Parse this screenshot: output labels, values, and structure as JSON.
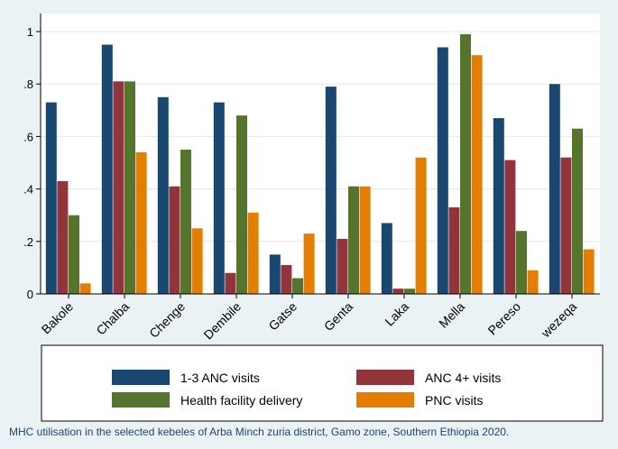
{
  "chart_data": {
    "type": "bar",
    "title": "",
    "xlabel": "",
    "ylabel": "",
    "ylim": [
      0,
      1
    ],
    "yticks": [
      0,
      0.2,
      0.4,
      0.6,
      0.8,
      1
    ],
    "ytick_labels": [
      "0",
      ".2",
      ".4",
      ".6",
      ".8",
      "1"
    ],
    "categories": [
      "Bakole",
      "Chalba",
      "Chenge",
      "Dembile",
      "Gatse",
      "Genta",
      "Laka",
      "Mella",
      "Pereso",
      "wezeqa"
    ],
    "series": [
      {
        "name": "1-3 ANC visits",
        "color": "#1a476f",
        "values": [
          0.73,
          0.95,
          0.75,
          0.73,
          0.15,
          0.79,
          0.27,
          0.94,
          0.67,
          0.8
        ]
      },
      {
        "name": "ANC 4+ visits",
        "color": "#90353b",
        "values": [
          0.43,
          0.81,
          0.41,
          0.08,
          0.11,
          0.21,
          0.02,
          0.33,
          0.51,
          0.52
        ]
      },
      {
        "name": "Health facility delivery",
        "color": "#55752f",
        "values": [
          0.3,
          0.81,
          0.55,
          0.68,
          0.06,
          0.41,
          0.02,
          0.99,
          0.24,
          0.63
        ]
      },
      {
        "name": "PNC visits",
        "color": "#e37e00",
        "values": [
          0.04,
          0.54,
          0.25,
          0.31,
          0.23,
          0.41,
          0.52,
          0.91,
          0.09,
          0.17
        ]
      }
    ],
    "legend_position": "bottom",
    "caption": "MHC utilisation in the selected kebeles of Arba Minch zuria district, Gamo zone, Southern Ethiopia 2020."
  }
}
